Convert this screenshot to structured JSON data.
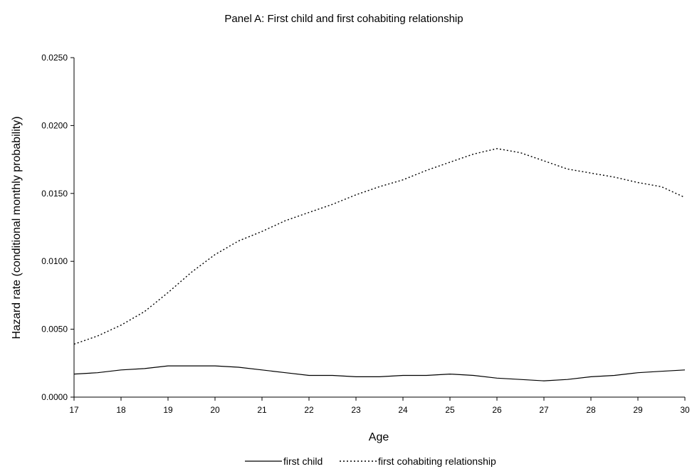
{
  "chart_data": {
    "type": "line",
    "title": "Panel A: First child and first cohabiting relationship",
    "xlabel": "Age",
    "ylabel": "Hazard rate (conditional monthly probability)",
    "xlim": [
      17,
      30
    ],
    "ylim": [
      0,
      0.025
    ],
    "x_ticks": [
      "17",
      "18",
      "19",
      "20",
      "21",
      "22",
      "23",
      "24",
      "25",
      "26",
      "27",
      "28",
      "29",
      "30"
    ],
    "y_ticks": [
      "0.0000",
      "0.0050",
      "0.0100",
      "0.0150",
      "0.0200",
      "0.0250"
    ],
    "grid": false,
    "legend_position": "bottom",
    "x": [
      17,
      17.5,
      18,
      18.5,
      19,
      19.5,
      20,
      20.5,
      21,
      21.5,
      22,
      22.5,
      23,
      23.5,
      24,
      24.5,
      25,
      25.5,
      26,
      26.5,
      27,
      27.5,
      28,
      28.5,
      29,
      29.5,
      30
    ],
    "series": [
      {
        "name": "first child",
        "style": "solid",
        "color": "#000000",
        "values": [
          0.0017,
          0.0018,
          0.002,
          0.0021,
          0.0023,
          0.0023,
          0.0023,
          0.0022,
          0.002,
          0.0018,
          0.0016,
          0.0016,
          0.0015,
          0.0015,
          0.0016,
          0.0016,
          0.0017,
          0.0016,
          0.0014,
          0.0013,
          0.0012,
          0.0013,
          0.0015,
          0.0016,
          0.0018,
          0.0019,
          0.002
        ]
      },
      {
        "name": "first cohabiting relationship",
        "style": "dotted",
        "color": "#000000",
        "values": [
          0.0039,
          0.0045,
          0.0053,
          0.0063,
          0.0077,
          0.0092,
          0.0105,
          0.0115,
          0.0122,
          0.013,
          0.0136,
          0.0142,
          0.0149,
          0.0155,
          0.016,
          0.0167,
          0.0173,
          0.0179,
          0.0183,
          0.018,
          0.0174,
          0.0168,
          0.0165,
          0.0162,
          0.0158,
          0.0155,
          0.0147
        ]
      }
    ]
  }
}
